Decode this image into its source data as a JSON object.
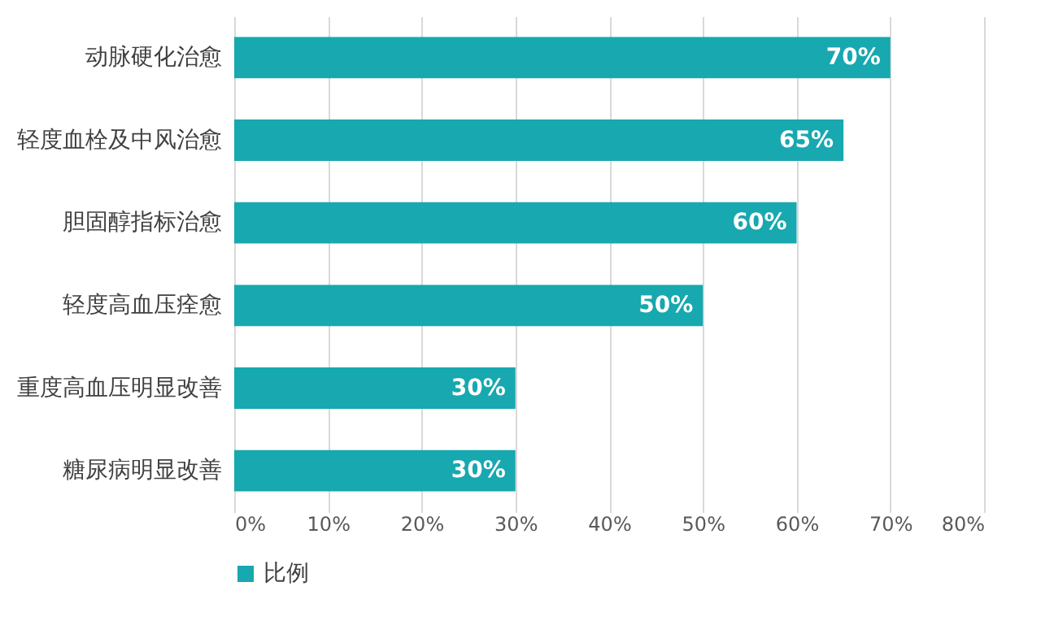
{
  "chart_data": {
    "type": "bar",
    "orientation": "horizontal",
    "categories": [
      "动脉硬化治愈",
      "轻度血栓及中风治愈",
      "胆固醇指标治愈",
      "轻度高血压痊愈",
      "重度高血压明显改善",
      "糖尿病明显改善"
    ],
    "series": [
      {
        "name": "比例",
        "color": "#17a8b0",
        "values": [
          70,
          65,
          60,
          50,
          30,
          30
        ],
        "value_labels": [
          "70%",
          "65%",
          "60%",
          "50%",
          "30%",
          "30%"
        ]
      }
    ],
    "xlim": [
      0,
      80
    ],
    "xticks": [
      {
        "value": 0,
        "label": "0%"
      },
      {
        "value": 10,
        "label": "10%"
      },
      {
        "value": 20,
        "label": "20%"
      },
      {
        "value": 30,
        "label": "30%"
      },
      {
        "value": 40,
        "label": "40%"
      },
      {
        "value": 50,
        "label": "50%"
      },
      {
        "value": 60,
        "label": "60%"
      },
      {
        "value": 70,
        "label": "70%"
      },
      {
        "value": 80,
        "label": "80%"
      }
    ],
    "grid": "x",
    "legend": "bottom"
  }
}
